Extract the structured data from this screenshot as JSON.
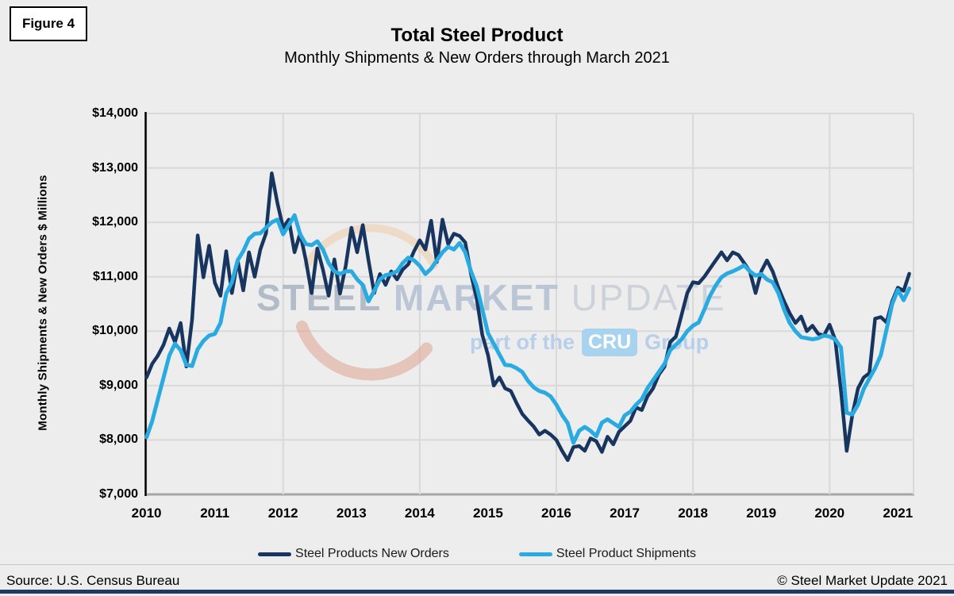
{
  "header": {
    "figure_label": "Figure 4",
    "title": "Total Steel Product",
    "subtitle": "Monthly Shipments & New Orders through March 2021"
  },
  "watermark": {
    "word1": "STEEL",
    "word2": "MARKET",
    "word3": "UPDATE",
    "tagline_pre": "part of the",
    "tagline_badge": "CRU",
    "tagline_post": "Group"
  },
  "footer": {
    "source": "Source: U.S. Census Bureau",
    "copyright": "© Steel Market Update 2021"
  },
  "colors": {
    "new_orders": "#17355F",
    "shipments": "#29ABE2",
    "background": "#EDEDED",
    "gridline": "#D9D9D9",
    "x_axis": "#A6A6A6",
    "y_axis": "#000000",
    "bottom_bar": "#1F3864"
  },
  "chart_data": {
    "type": "line",
    "title": "Total Steel Product",
    "subtitle": "Monthly Shipments & New Orders through March 2021",
    "xlabel": "",
    "ylabel": "Monthly Shipments & New Orders $ Millions",
    "ylim": [
      7000,
      14000
    ],
    "y_tick_labels": [
      "$14,000",
      "$13,000",
      "$12,000",
      "$11,000",
      "$10,000",
      "$9,000",
      "$8,000",
      "$7,000"
    ],
    "x_tick_labels": [
      "2010",
      "2011",
      "2012",
      "2013",
      "2014",
      "2015",
      "2016",
      "2017",
      "2018",
      "2019",
      "2020",
      "2021"
    ],
    "x_start": "2010-01",
    "x_end": "2021-03",
    "grid": {
      "horizontal_step": 1000,
      "vertical_gridline_years": [
        2010,
        2012,
        2014,
        2016,
        2018,
        2020
      ]
    },
    "legend_position": "bottom",
    "series": [
      {
        "name": "Steel Products New Orders",
        "color": "#17355F",
        "values": [
          9150,
          9400,
          9550,
          9750,
          10050,
          9800,
          10150,
          9350,
          10210,
          11760,
          10990,
          11570,
          10890,
          10650,
          11470,
          10700,
          11300,
          10750,
          11450,
          11000,
          11500,
          11800,
          12900,
          12350,
          11900,
          12050,
          11450,
          11800,
          11300,
          10700,
          11520,
          11130,
          10650,
          11320,
          10690,
          11200,
          11900,
          11450,
          11950,
          11300,
          10700,
          11050,
          10850,
          11100,
          10950,
          11130,
          11230,
          11470,
          11670,
          11500,
          12030,
          11270,
          12050,
          11600,
          11790,
          11750,
          11630,
          11050,
          10600,
          9930,
          9560,
          9000,
          9150,
          8950,
          8900,
          8680,
          8480,
          8360,
          8250,
          8100,
          8170,
          8100,
          8000,
          7800,
          7630,
          7870,
          7890,
          7800,
          8030,
          7980,
          7780,
          8060,
          7920,
          8150,
          8250,
          8350,
          8600,
          8550,
          8800,
          8950,
          9200,
          9350,
          9800,
          9900,
          10300,
          10700,
          10900,
          10880,
          11000,
          11150,
          11300,
          11450,
          11300,
          11450,
          11400,
          11250,
          11100,
          10700,
          11100,
          11300,
          11100,
          10800,
          10550,
          10330,
          10150,
          10270,
          10000,
          10100,
          9950,
          9920,
          10120,
          9840,
          8900,
          7800,
          8460,
          8950,
          9150,
          9230,
          10230,
          10260,
          10160,
          10550,
          10800,
          10740,
          11055
        ]
      },
      {
        "name": "Steel Product Shipments",
        "color": "#29ABE2",
        "values": [
          8050,
          8350,
          8750,
          9150,
          9550,
          9770,
          9650,
          9380,
          9360,
          9670,
          9820,
          9920,
          9950,
          10150,
          10690,
          10900,
          11300,
          11470,
          11700,
          11790,
          11800,
          11900,
          12000,
          12050,
          11780,
          11950,
          12130,
          11780,
          11600,
          11580,
          11650,
          11500,
          11250,
          11100,
          11050,
          11100,
          11100,
          10950,
          10850,
          10550,
          10740,
          10950,
          11030,
          11050,
          11100,
          11250,
          11350,
          11300,
          11200,
          11050,
          11150,
          11300,
          11450,
          11550,
          11500,
          11620,
          11450,
          11100,
          10830,
          10400,
          9960,
          9770,
          9570,
          9380,
          9370,
          9320,
          9250,
          9090,
          8970,
          8900,
          8870,
          8800,
          8650,
          8460,
          8310,
          7950,
          8170,
          8240,
          8170,
          8070,
          8320,
          8380,
          8310,
          8240,
          8450,
          8520,
          8650,
          8750,
          8950,
          9100,
          9250,
          9400,
          9650,
          9750,
          9850,
          10000,
          10100,
          10160,
          10400,
          10650,
          10840,
          10990,
          11060,
          11100,
          11150,
          11210,
          11100,
          11020,
          11050,
          10950,
          10900,
          10700,
          10400,
          10150,
          10000,
          9890,
          9870,
          9850,
          9870,
          9920,
          9900,
          9850,
          9700,
          8500,
          8470,
          8650,
          8940,
          9130,
          9320,
          9560,
          10030,
          10495,
          10760,
          10570,
          10785
        ]
      }
    ]
  }
}
